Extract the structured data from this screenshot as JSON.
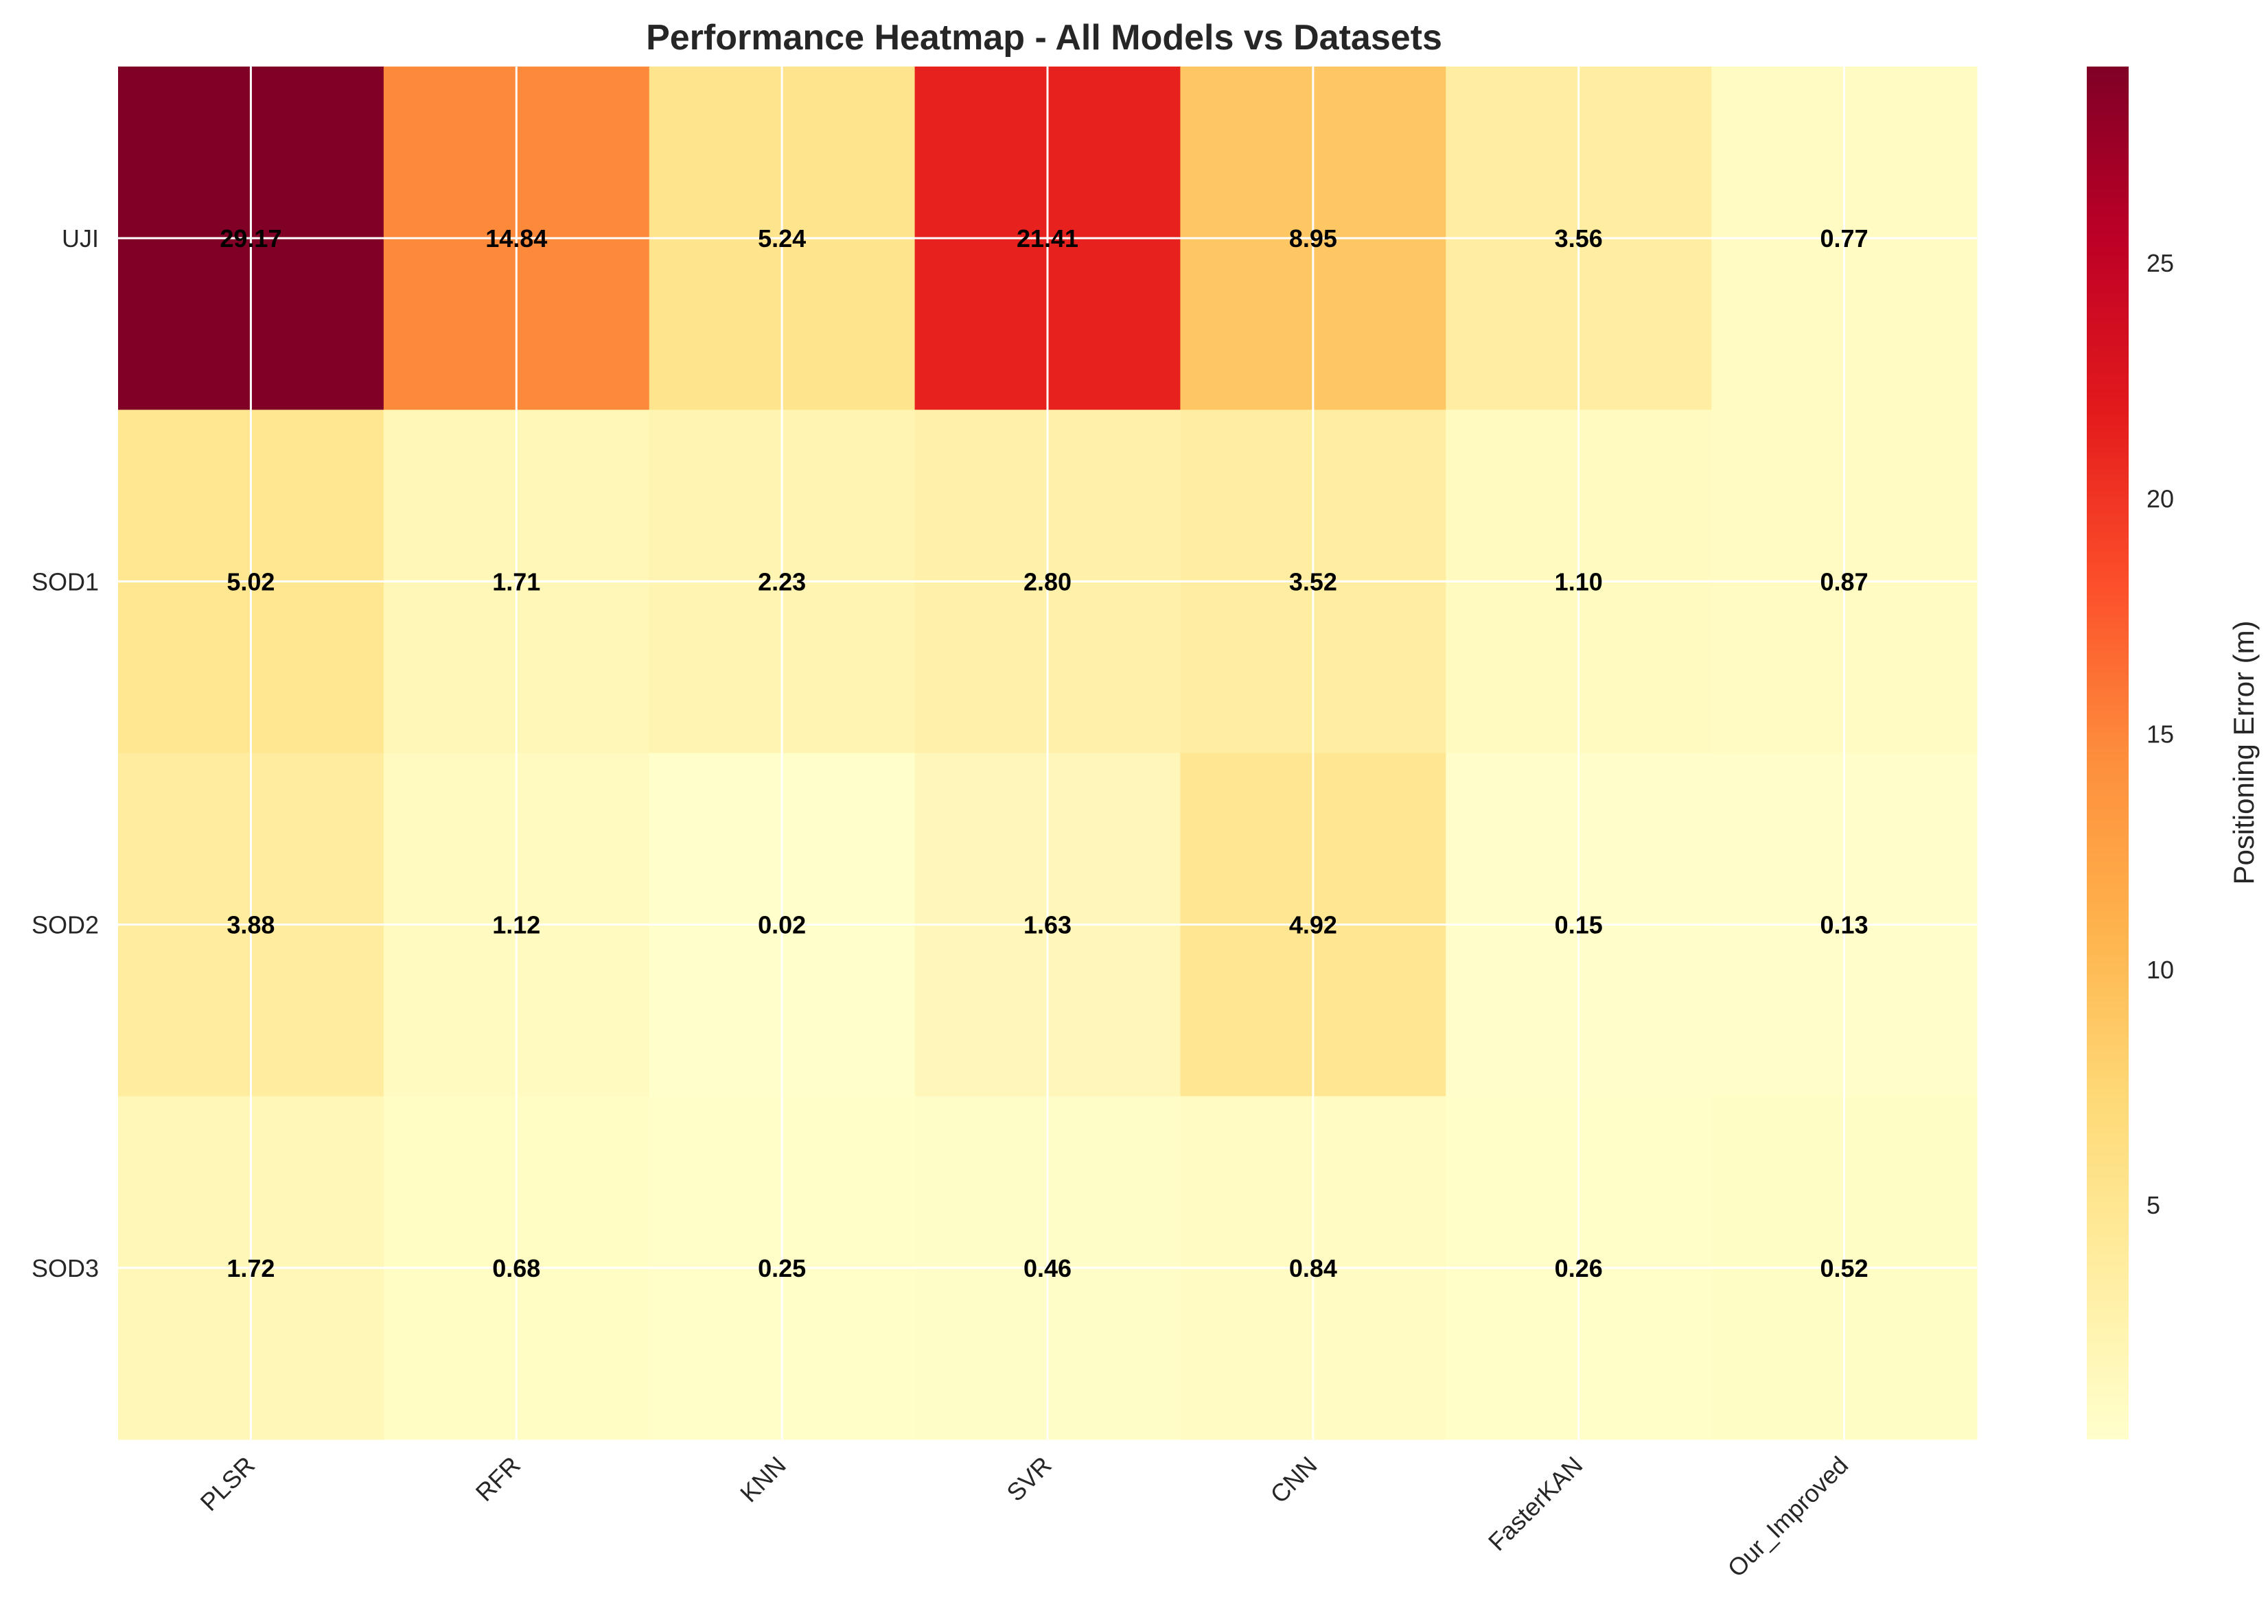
{
  "chart_data": {
    "type": "heatmap",
    "title": "Performance Heatmap - All Models vs Datasets",
    "x_categories": [
      "PLSR",
      "RFR",
      "KNN",
      "SVR",
      "CNN",
      "FasterKAN",
      "Our_Improved"
    ],
    "y_categories": [
      "UJI",
      "SOD1",
      "SOD2",
      "SOD3"
    ],
    "values": [
      [
        29.17,
        14.84,
        5.24,
        21.41,
        8.95,
        3.56,
        0.77
      ],
      [
        5.02,
        1.71,
        2.23,
        2.8,
        3.52,
        1.1,
        0.87
      ],
      [
        3.88,
        1.12,
        0.02,
        1.63,
        4.92,
        0.15,
        0.13
      ],
      [
        1.72,
        0.68,
        0.25,
        0.46,
        0.84,
        0.26,
        0.52
      ]
    ],
    "colormap": "YlOrRd",
    "vmin": 0.02,
    "vmax": 29.17,
    "colorbar": {
      "label": "Positioning Error (m)",
      "ticks": [
        5,
        10,
        15,
        20,
        25
      ]
    },
    "grid": true,
    "grid_color": "#ffffff"
  }
}
